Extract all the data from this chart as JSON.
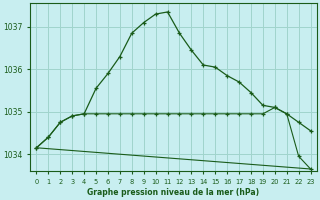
{
  "title": "Graphe pression niveau de la mer (hPa)",
  "background_color": "#c8eef0",
  "grid_color": "#a0d4cc",
  "line_color": "#1a5c1a",
  "xlim": [
    -0.5,
    23.5
  ],
  "ylim": [
    1033.6,
    1037.55
  ],
  "yticks": [
    1034,
    1035,
    1036,
    1037
  ],
  "xticks": [
    0,
    1,
    2,
    3,
    4,
    5,
    6,
    7,
    8,
    9,
    10,
    11,
    12,
    13,
    14,
    15,
    16,
    17,
    18,
    19,
    20,
    21,
    22,
    23
  ],
  "series1_x": [
    0,
    1,
    2,
    3,
    4,
    5,
    6,
    7,
    8,
    9,
    10,
    11,
    12,
    13,
    14,
    15,
    16,
    17,
    18,
    19,
    20,
    21,
    22,
    23
  ],
  "series1_y": [
    1034.15,
    1034.4,
    1034.75,
    1034.9,
    1034.95,
    1035.55,
    1035.9,
    1036.3,
    1036.85,
    1037.1,
    1037.3,
    1037.35,
    1036.85,
    1036.45,
    1036.1,
    1036.05,
    1035.85,
    1035.7,
    1035.45,
    1035.15,
    1035.1,
    1034.95,
    1034.75,
    1034.55
  ],
  "series2_x": [
    0,
    1,
    2,
    3,
    4,
    5,
    6,
    7,
    8,
    9,
    10,
    11,
    12,
    13,
    14,
    15,
    16,
    17,
    18,
    19,
    20,
    21,
    22,
    23
  ],
  "series2_y": [
    1034.15,
    1034.4,
    1034.75,
    1034.9,
    1034.95,
    1034.95,
    1034.95,
    1034.95,
    1034.95,
    1034.95,
    1034.95,
    1034.95,
    1034.95,
    1034.95,
    1034.95,
    1034.95,
    1034.95,
    1034.95,
    1034.95,
    1034.95,
    1035.1,
    1034.95,
    1033.95,
    1033.65
  ],
  "series3_x": [
    0,
    23
  ],
  "series3_y": [
    1034.15,
    1033.65
  ]
}
